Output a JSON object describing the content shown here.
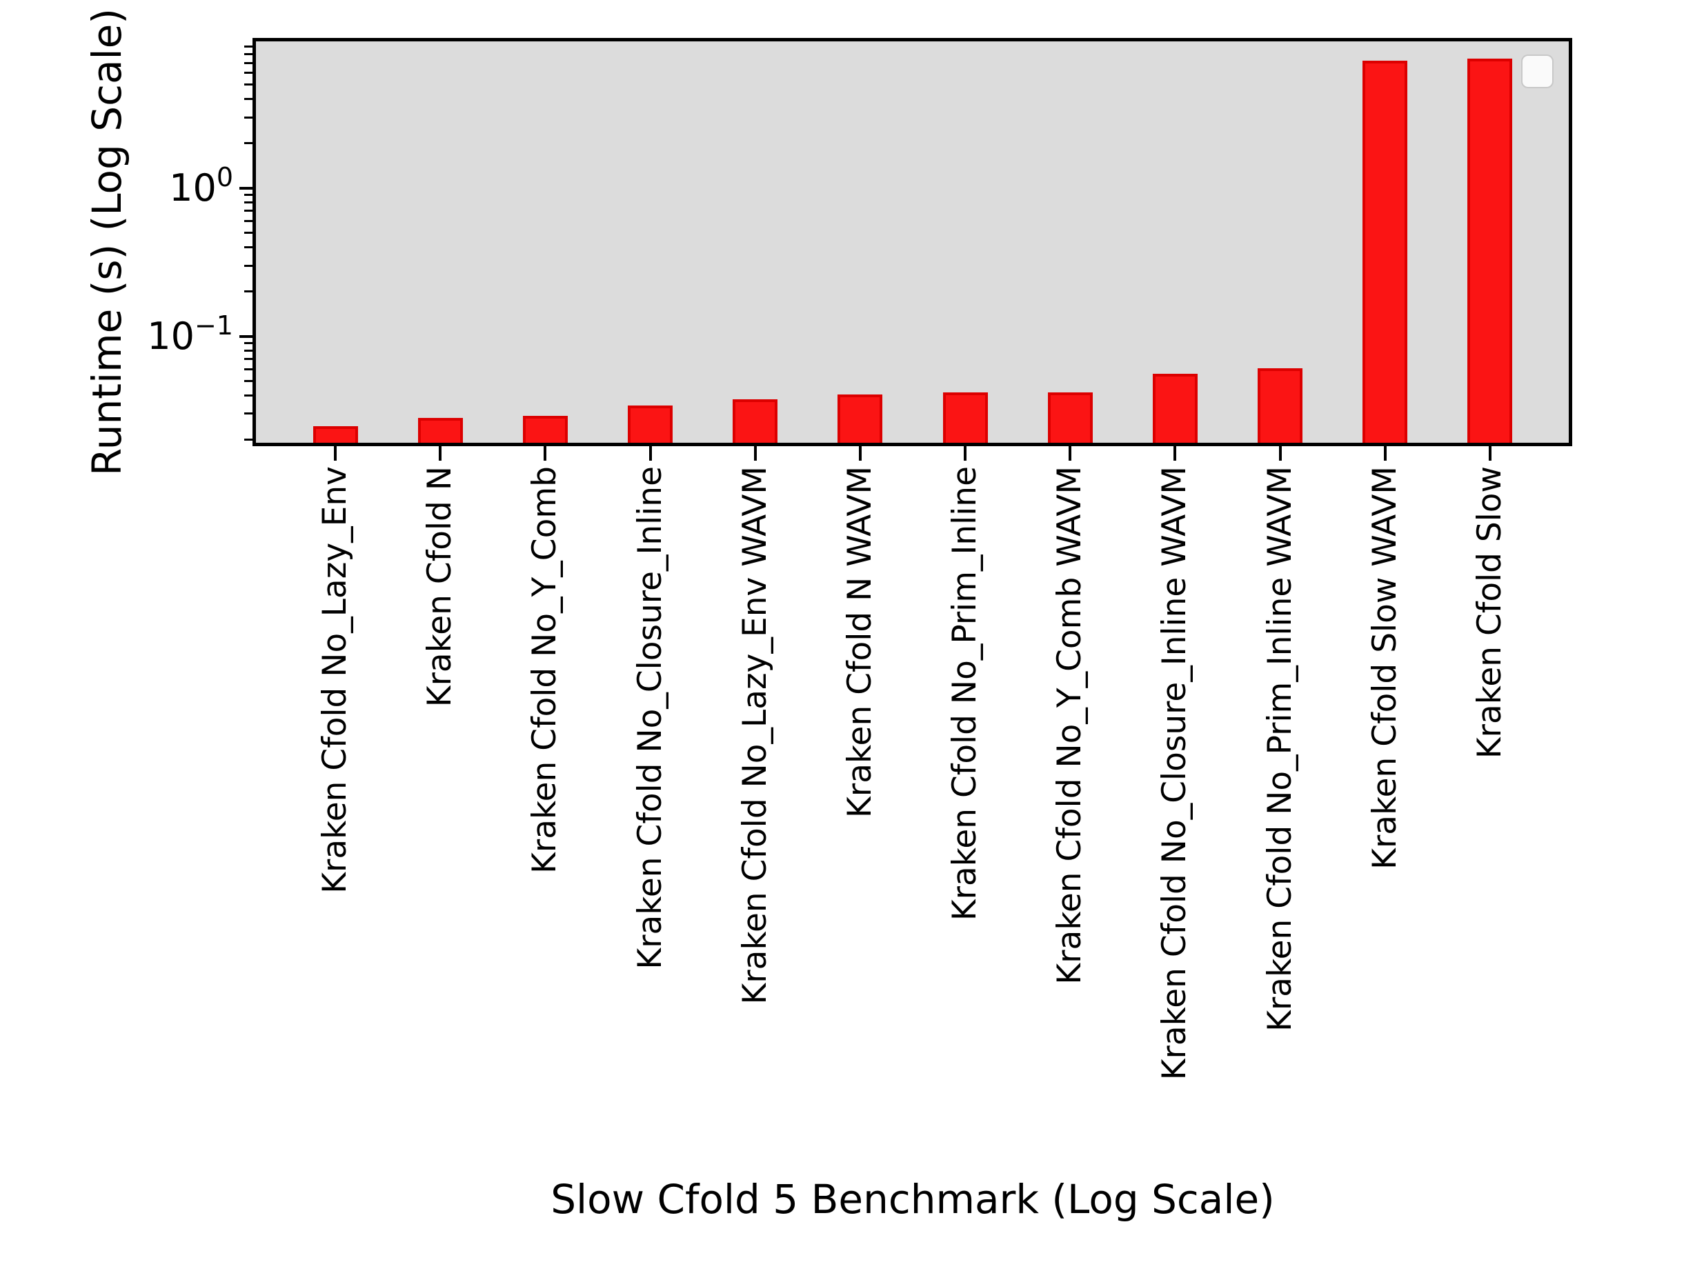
{
  "chart_data": {
    "type": "bar",
    "title": "",
    "xlabel": "Slow Cfold 5 Benchmark (Log Scale)",
    "ylabel": "Runtime (s) (Log Scale)",
    "yscale": "log",
    "ylim": [
      0.0185,
      9.98
    ],
    "xlim": [
      -0.77,
      11.77
    ],
    "grid": false,
    "bar_width_ratio": 0.43,
    "categories": [
      "Kraken Cfold No_Lazy_Env",
      "Kraken Cfold N",
      "Kraken Cfold No_Y_Comb",
      "Kraken Cfold No_Closure_Inline",
      "Kraken Cfold No_Lazy_Env WAVM",
      "Kraken Cfold N WAVM",
      "Kraken Cfold No_Prim_Inline",
      "Kraken Cfold No_Y_Comb WAVM",
      "Kraken Cfold No_Closure_Inline WAVM",
      "Kraken Cfold No_Prim_Inline WAVM",
      "Kraken Cfold Slow WAVM",
      "Kraken Cfold Slow"
    ],
    "values": [
      0.0247,
      0.0281,
      0.029,
      0.0341,
      0.0376,
      0.0405,
      0.0418,
      0.0417,
      0.056,
      0.061,
      7.2,
      7.5
    ],
    "y_major_ticks": [
      {
        "value": 1,
        "base": "10",
        "exponent": "0"
      },
      {
        "value": 0.1,
        "base": "10",
        "exponent": "−1"
      }
    ],
    "y_minor_ticks": [
      0.02,
      0.03,
      0.04,
      0.05,
      0.06,
      0.07,
      0.08,
      0.09,
      0.2,
      0.3,
      0.4,
      0.5,
      0.6,
      0.7,
      0.8,
      0.9,
      2,
      3,
      4,
      5,
      6,
      7,
      8,
      9
    ],
    "legend": {
      "visible": true,
      "entries": []
    },
    "colors": {
      "bar_fill": "#fb1414",
      "bar_edge": "#dc0000",
      "plot_background": "#dcdcdc",
      "spine": "#000000",
      "tick": "#000000",
      "text": "#000000",
      "legend_face": "rgba(255,255,255,0.85)",
      "legend_edge": "#c8c8c8"
    }
  }
}
